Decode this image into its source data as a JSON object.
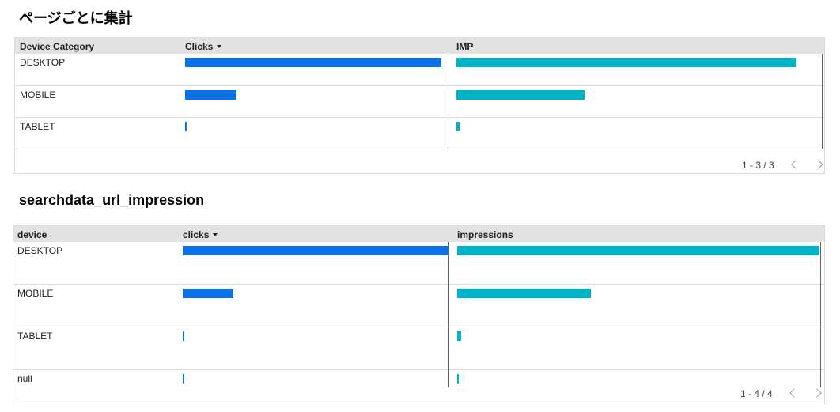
{
  "sections": [
    {
      "title": "ページごとに集計",
      "headers": {
        "dimension": "Device Category",
        "metric1": "Clicks",
        "metric2": "IMP"
      },
      "rows": [
        {
          "label": "DESKTOP",
          "metric1_fraction": 1.0,
          "metric2_fraction": 0.93
        },
        {
          "label": "MOBILE",
          "metric1_fraction": 0.2,
          "metric2_fraction": 0.35
        },
        {
          "label": "TABLET",
          "metric1_fraction": 0.006,
          "metric2_fraction": 0.009
        }
      ],
      "pagination": "1 - 3 / 3"
    },
    {
      "title": "searchdata_url_impression",
      "headers": {
        "dimension": "device",
        "metric1": "clicks",
        "metric2": "impressions"
      },
      "rows": [
        {
          "label": "DESKTOP",
          "metric1_fraction": 1.0,
          "metric2_fraction": 1.0
        },
        {
          "label": "MOBILE",
          "metric1_fraction": 0.19,
          "metric2_fraction": 0.37
        },
        {
          "label": "TABLET",
          "metric1_fraction": 0.004,
          "metric2_fraction": 0.012
        },
        {
          "label": "null",
          "metric1_fraction": 0.004,
          "metric2_fraction": 0.003
        }
      ],
      "pagination": "1 - 4 / 4"
    }
  ],
  "colors": {
    "clicks_bar": "#0b71e6",
    "impressions_bar": "#00b4c7",
    "header_bg": "#e2e2e2"
  },
  "icons": {
    "sort": "sort-descending-caret-icon",
    "prev": "chevron-left-icon",
    "next": "chevron-right-icon"
  }
}
